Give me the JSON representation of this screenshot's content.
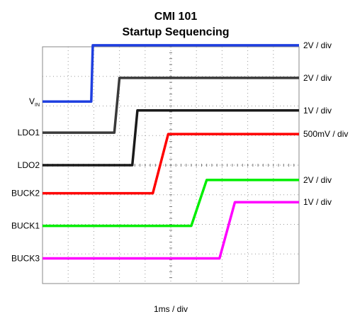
{
  "chart_data": {
    "type": "line",
    "title": "CMI  101",
    "subtitle": "Startup Sequencing",
    "xlabel": "1ms / div",
    "ylabel": "",
    "x_unit": "ms",
    "xlim": [
      0,
      10
    ],
    "grid": true,
    "series": [
      {
        "name": "V",
        "name_subscript": "IN",
        "scale": "2V / div",
        "color": "#1f3fe0",
        "baseline_div": 6.15,
        "step_div": 1.9,
        "rise_start": 1.9,
        "rise_end": 1.96
      },
      {
        "name": "LDO1",
        "scale": "2V / div",
        "color": "#3a3a3a",
        "baseline_div": 5.1,
        "step_div": 1.85,
        "rise_start": 2.8,
        "rise_end": 3.0
      },
      {
        "name": "LDO2",
        "scale": "1V / div",
        "color": "#1a1a1a",
        "baseline_div": 4.0,
        "step_div": 1.85,
        "rise_start": 3.5,
        "rise_end": 3.7
      },
      {
        "name": "BUCK2",
        "scale": "500mV / div",
        "color": "#ff0000",
        "baseline_div": 3.05,
        "step_div": 2.0,
        "rise_start": 4.3,
        "rise_end": 4.9
      },
      {
        "name": "BUCK1",
        "scale": "2V / div",
        "color": "#00ee00",
        "baseline_div": 1.95,
        "step_div": 1.55,
        "rise_start": 5.8,
        "rise_end": 6.4
      },
      {
        "name": "BUCK3",
        "scale": "1V / div",
        "color": "#ff00ff",
        "baseline_div": 0.85,
        "step_div": 1.9,
        "rise_start": 6.9,
        "rise_end": 7.5
      }
    ]
  }
}
